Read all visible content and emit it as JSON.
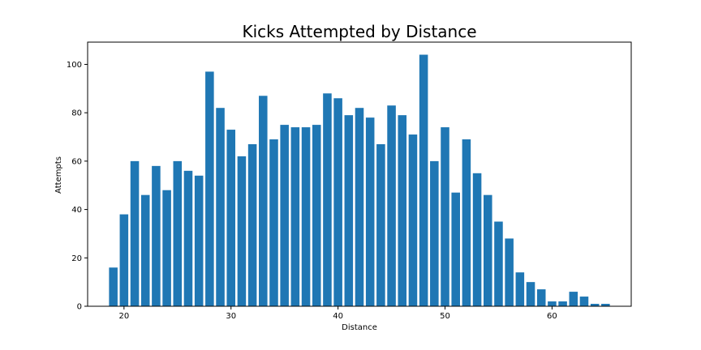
{
  "chart_data": {
    "type": "bar",
    "title": "Kicks Attempted by Distance",
    "xlabel": "Distance",
    "ylabel": "Attempts",
    "x": [
      19,
      20,
      21,
      22,
      23,
      24,
      25,
      26,
      27,
      28,
      29,
      30,
      31,
      32,
      33,
      34,
      35,
      36,
      37,
      38,
      39,
      40,
      41,
      42,
      43,
      44,
      45,
      46,
      47,
      48,
      49,
      50,
      51,
      52,
      53,
      54,
      55,
      56,
      57,
      58,
      59,
      60,
      61,
      62,
      63,
      64,
      65
    ],
    "values": [
      16,
      38,
      60,
      46,
      58,
      48,
      60,
      56,
      54,
      97,
      82,
      73,
      62,
      67,
      87,
      69,
      75,
      74,
      74,
      75,
      88,
      86,
      79,
      82,
      78,
      67,
      83,
      79,
      71,
      104,
      60,
      74,
      47,
      69,
      55,
      46,
      35,
      28,
      14,
      10,
      7,
      2,
      2,
      6,
      4,
      1,
      1
    ],
    "xlim": [
      16.6,
      67.4
    ],
    "ylim": [
      0,
      109.2
    ],
    "xticks": [
      20,
      30,
      40,
      50,
      60
    ],
    "yticks": [
      0,
      20,
      40,
      60,
      80,
      100
    ],
    "bar_color": "#1f77b4",
    "grid": false,
    "legend": "none"
  }
}
